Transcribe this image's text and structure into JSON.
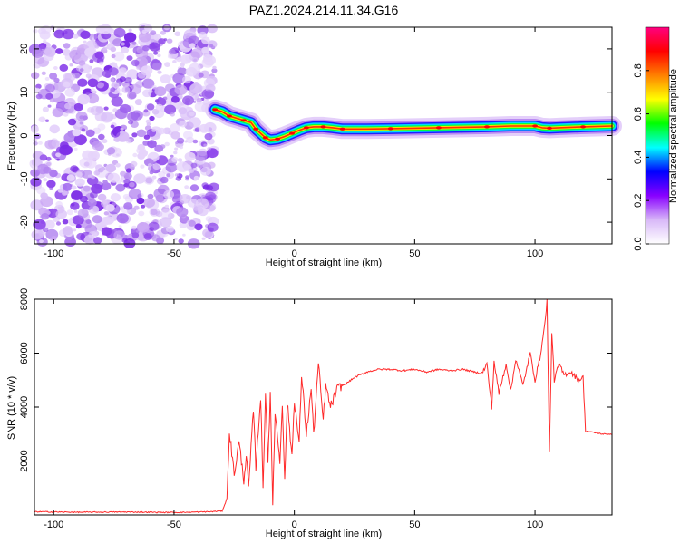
{
  "figure": {
    "title": "PAZ1.2024.214.11.34.G16"
  },
  "chart_data": [
    {
      "id": "spectrogram",
      "type": "heatmap",
      "title": "PAZ1.2024.214.11.34.G16",
      "xlabel": "Height of straight line (km)",
      "ylabel": "Frequency (Hz)",
      "xlim": [
        -108,
        132
      ],
      "ylim": [
        -25,
        25
      ],
      "xticks": [
        -100,
        -50,
        0,
        50,
        100
      ],
      "yticks": [
        -20,
        -10,
        0,
        10,
        20
      ],
      "grid": false,
      "colorbar": {
        "label": "Normalized spectral amplitude",
        "range": [
          0,
          1
        ],
        "ticks": [
          "0.0",
          "0.2",
          "0.4",
          "0.6",
          "0.8"
        ],
        "colormap": [
          "#ffffff",
          "#d8b8f8",
          "#8800ff",
          "#0000ff",
          "#00ffff",
          "#00ff00",
          "#ffff00",
          "#ff8000",
          "#ff0000",
          "#ff0080"
        ]
      },
      "noise_region_x": [
        -108,
        -33
      ],
      "ridge": {
        "x": [
          -33,
          -30,
          -27,
          -24,
          -21,
          -18,
          -16,
          -14,
          -12,
          -10,
          -7,
          -4,
          -1,
          2,
          5,
          8,
          12,
          16,
          20,
          30,
          40,
          50,
          60,
          70,
          80,
          90,
          100,
          103,
          106,
          110,
          120,
          132
        ],
        "y": [
          6,
          5.5,
          4.5,
          4,
          3.5,
          3,
          1.5,
          0.5,
          -0.5,
          -1,
          -0.8,
          -0.2,
          0.5,
          1.2,
          1.8,
          2,
          2,
          1.8,
          1.5,
          1.5,
          1.6,
          1.7,
          1.8,
          1.9,
          2.0,
          2.2,
          2.2,
          1.8,
          1.7,
          1.8,
          2.0,
          2.2
        ]
      }
    },
    {
      "id": "snr",
      "type": "line",
      "xlabel": "Height of straight line (km)",
      "ylabel": "SNR (10 * v/v)",
      "xlim": [
        -108,
        132
      ],
      "ylim": [
        0,
        8000
      ],
      "xticks": [
        -100,
        -50,
        0,
        50,
        100
      ],
      "yticks": [
        2000,
        4000,
        6000,
        8000
      ],
      "grid": false,
      "color": "#ff2a2a",
      "x": [
        -108,
        -90,
        -70,
        -50,
        -35,
        -30,
        -28,
        -27,
        -25,
        -23,
        -21,
        -20,
        -19,
        -17,
        -16,
        -14,
        -13,
        -12,
        -11,
        -10,
        -9,
        -8,
        -6,
        -5,
        -4,
        -3,
        -1,
        0,
        2,
        3,
        5,
        7,
        8,
        10,
        12,
        13,
        15,
        18,
        22,
        25,
        30,
        35,
        40,
        45,
        50,
        55,
        60,
        65,
        70,
        75,
        78,
        80,
        82,
        83,
        85,
        88,
        90,
        92,
        95,
        98,
        100,
        102,
        104,
        105,
        106,
        107,
        108,
        110,
        112,
        115,
        118,
        120,
        121,
        122,
        125,
        128,
        132
      ],
      "y": [
        120,
        100,
        110,
        90,
        120,
        150,
        600,
        3100,
        1500,
        2700,
        1300,
        2200,
        1000,
        3900,
        1800,
        4400,
        900,
        4600,
        2000,
        4400,
        400,
        3800,
        2000,
        4200,
        1200,
        4200,
        2200,
        4300,
        2600,
        5200,
        3000,
        4700,
        3000,
        5600,
        3500,
        4800,
        4000,
        4700,
        4900,
        5100,
        5300,
        5400,
        5400,
        5350,
        5400,
        5300,
        5400,
        5350,
        5400,
        5300,
        5250,
        5600,
        4000,
        5700,
        4500,
        5600,
        4600,
        5800,
        4800,
        6000,
        5000,
        5800,
        7000,
        8000,
        2300,
        6800,
        5000,
        5600,
        5200,
        5300,
        5000,
        5100,
        3100,
        3100,
        3050,
        3000,
        3000
      ]
    }
  ]
}
